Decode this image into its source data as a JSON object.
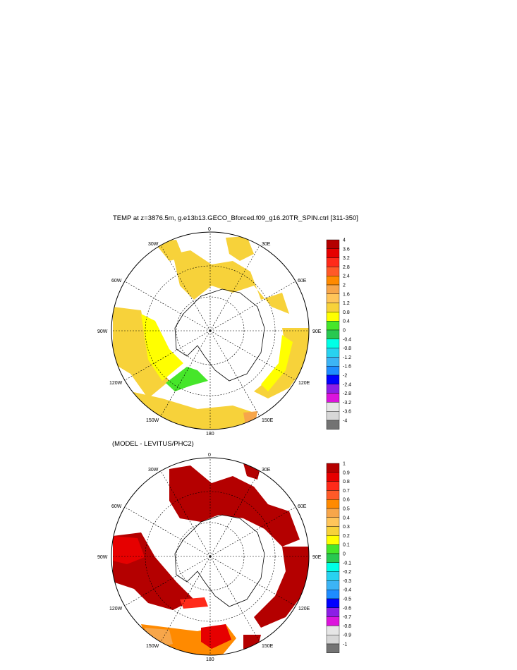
{
  "panels": [
    {
      "title": "TEMP at z=3876.5m, g.e13b13.GECO_Bforced.f09_g16.20TR_SPIN.ctrl [311-350]",
      "colorbar": {
        "labels": [
          "4",
          "3.6",
          "3.2",
          "2.8",
          "2.4",
          "2",
          "1.6",
          "1.2",
          "0.8",
          "0.4",
          "0",
          "-0.4",
          "-0.8",
          "-1.2",
          "-1.6",
          "-2",
          "-2.4",
          "-2.8",
          "-3.2",
          "-3.6",
          "-4"
        ]
      },
      "regions": [
        {
          "level": 1.2,
          "color": "#f7d23a"
        },
        {
          "level": 0.8,
          "color": "#ffff00"
        },
        {
          "level": 0.4,
          "color": "#46e62a"
        },
        {
          "level": 2.0,
          "color": "#f7a64a"
        }
      ]
    },
    {
      "title": "(MODEL - LEVITUS/PHC2)",
      "colorbar": {
        "labels": [
          "1",
          "0.9",
          "0.8",
          "0.7",
          "0.6",
          "0.5",
          "0.4",
          "0.3",
          "0.2",
          "0.1",
          "0",
          "-0.1",
          "-0.2",
          "-0.3",
          "-0.4",
          "-0.5",
          "-0.6",
          "-0.7",
          "-0.8",
          "-0.9",
          "-1"
        ]
      },
      "regions": [
        {
          "level": 1.0,
          "color": "#b40000"
        },
        {
          "level": 0.9,
          "color": "#e60000"
        },
        {
          "level": 0.7,
          "color": "#ff8a00"
        },
        {
          "level": 0.5,
          "color": "#f7a64a"
        }
      ]
    }
  ],
  "longitude_labels": [
    "0",
    "30E",
    "60E",
    "90E",
    "120E",
    "150E",
    "180",
    "150W",
    "120W",
    "90W",
    "60W",
    "30W"
  ],
  "colors": {
    "colorbar": [
      "#b40000",
      "#e60000",
      "#ff2a1a",
      "#ff5a28",
      "#ff8a00",
      "#f7a64a",
      "#ffc55a",
      "#f7d23a",
      "#ffff00",
      "#46e62a",
      "#28c850",
      "#00ffe6",
      "#28d2f0",
      "#3cb4f5",
      "#1e8cff",
      "#0000ff",
      "#8c1ee6",
      "#dc14dc",
      "#e6e6e6",
      "#d7d7d7",
      "#737373"
    ]
  }
}
